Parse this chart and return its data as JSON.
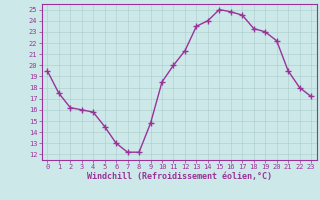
{
  "x": [
    0,
    1,
    2,
    3,
    4,
    5,
    6,
    7,
    8,
    9,
    10,
    11,
    12,
    13,
    14,
    15,
    16,
    17,
    18,
    19,
    20,
    21,
    22,
    23
  ],
  "y": [
    19.5,
    17.5,
    16.2,
    16.0,
    15.8,
    14.5,
    13.0,
    12.2,
    12.2,
    14.8,
    18.5,
    20.0,
    21.3,
    23.5,
    24.0,
    25.0,
    24.8,
    24.5,
    23.3,
    23.0,
    22.2,
    19.5,
    18.0,
    17.2
  ],
  "line_color": "#993399",
  "marker": "+",
  "markersize": 4,
  "linewidth": 1.0,
  "bg_color": "#cce8e8",
  "grid_color": "#aacccc",
  "xlabel": "Windchill (Refroidissement éolien,°C)",
  "xlim": [
    -0.5,
    23.5
  ],
  "ylim": [
    11.5,
    25.5
  ],
  "yticks": [
    12,
    13,
    14,
    15,
    16,
    17,
    18,
    19,
    20,
    21,
    22,
    23,
    24,
    25
  ],
  "xticks": [
    0,
    1,
    2,
    3,
    4,
    5,
    6,
    7,
    8,
    9,
    10,
    11,
    12,
    13,
    14,
    15,
    16,
    17,
    18,
    19,
    20,
    21,
    22,
    23
  ],
  "tick_fontsize": 5.0,
  "xlabel_fontsize": 6.0,
  "tick_color": "#993399",
  "label_color": "#993399",
  "spine_color": "#993399",
  "markeredgewidth": 1.0
}
